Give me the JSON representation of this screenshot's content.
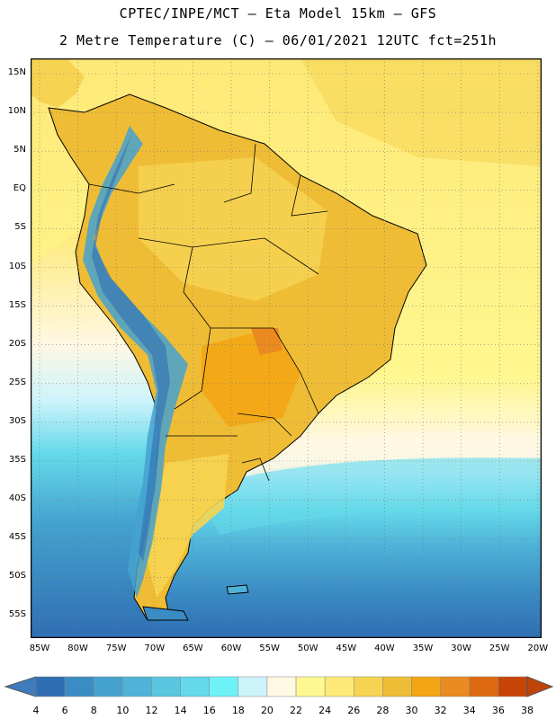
{
  "header": {
    "title_line1": "CPTEC/INPE/MCT –  Eta Model 15km – GFS",
    "title_line2": "2 Metre Temperature (C) – 06/01/2021 12UTC fct=251h"
  },
  "map": {
    "region": "South America",
    "variable": "2 Metre Temperature",
    "units": "C",
    "lat_labels": [
      "15N",
      "10N",
      "5N",
      "EQ",
      "5S",
      "10S",
      "15S",
      "20S",
      "25S",
      "30S",
      "35S",
      "40S",
      "45S",
      "50S",
      "55S"
    ],
    "lon_labels": [
      "85W",
      "80W",
      "75W",
      "70W",
      "65W",
      "60W",
      "55W",
      "50W",
      "45W",
      "40W",
      "35W",
      "30W",
      "25W",
      "20W"
    ]
  },
  "colorbar": {
    "labels": [
      "4",
      "6",
      "8",
      "10",
      "12",
      "14",
      "16",
      "18",
      "20",
      "22",
      "24",
      "26",
      "28",
      "30",
      "32",
      "34",
      "36",
      "38"
    ],
    "colors": [
      "#2f6eb3",
      "#3a8cc4",
      "#45a2cf",
      "#4fb3d8",
      "#5bc6e0",
      "#64d9ea",
      "#6ff2f7",
      "#cdf3fb",
      "#fff8e2",
      "#fff78f",
      "#fde977",
      "#f6d452",
      "#efbd35",
      "#f3a614",
      "#ea8a1f",
      "#dd6a10",
      "#c74407"
    ],
    "low_color": "#3f7bbd",
    "high_color": "#c0440a"
  }
}
